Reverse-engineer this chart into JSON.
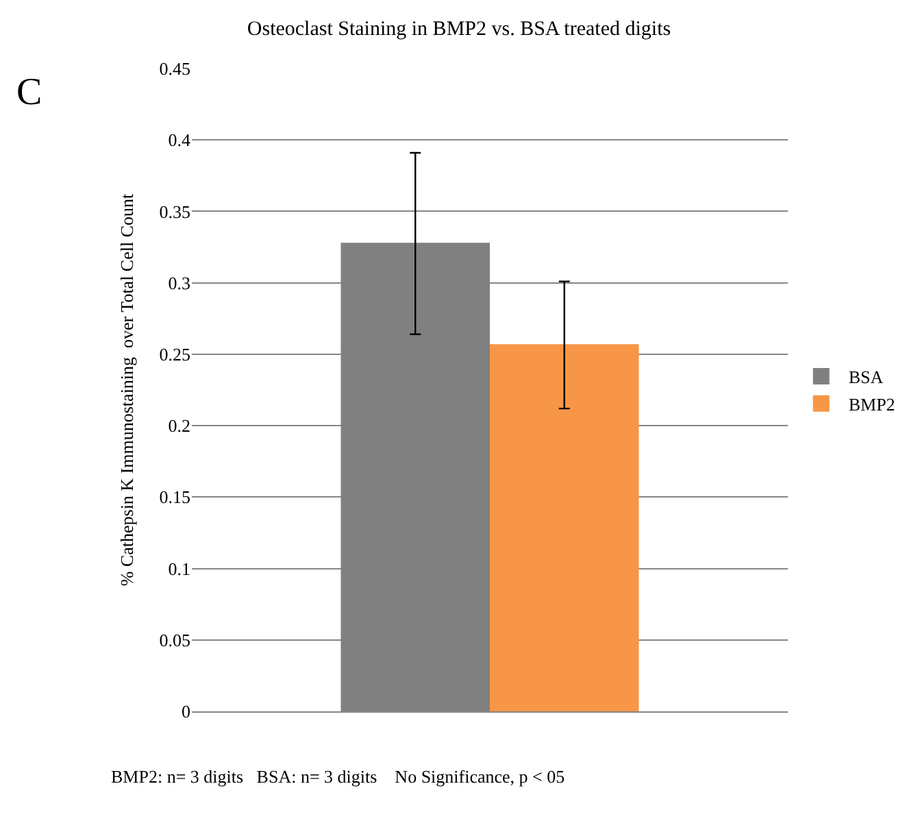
{
  "chart_data": {
    "type": "bar",
    "title": "Osteoclast Staining in BMP2 vs. BSA treated digits",
    "ylabel": "% Cathepsin K Immunostaining  over Total Cell Count",
    "categories": [
      null
    ],
    "series": [
      {
        "name": "BSA",
        "color": "#808080",
        "values": [
          0.328
        ],
        "errors": [
          [
            0.264,
            0.391
          ]
        ]
      },
      {
        "name": "BMP2",
        "color": "#f79646",
        "values": [
          0.257
        ],
        "errors": [
          [
            0.212,
            0.301
          ]
        ]
      }
    ],
    "ylim": [
      0,
      0.45
    ],
    "yticks": [
      0,
      0.05,
      0.1,
      0.15,
      0.2,
      0.25,
      0.3,
      0.35,
      0.4,
      0.45
    ],
    "grid": "y",
    "legend": "right",
    "annotations": [
      "C",
      "BMP2: n= 3 digits   BSA: n= 3 digits    No Significance, p < 05"
    ]
  }
}
